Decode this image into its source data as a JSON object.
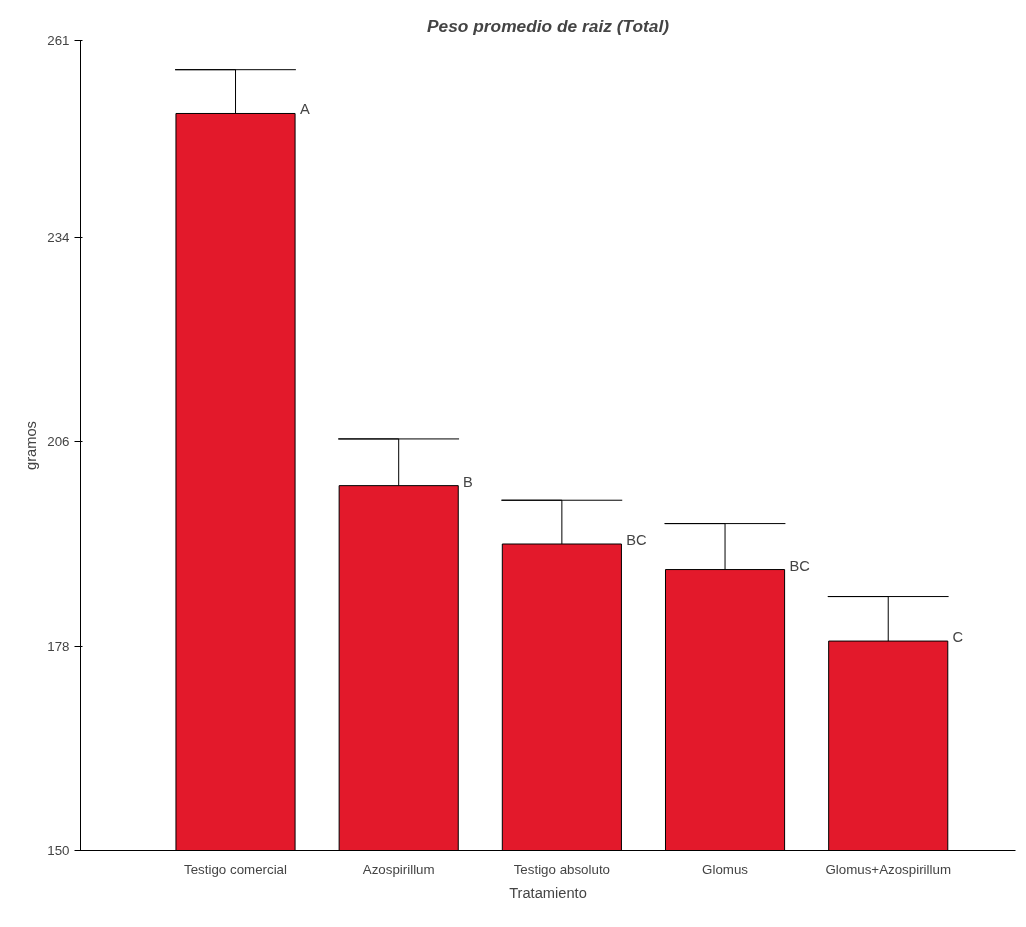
{
  "chart_data": {
    "type": "bar",
    "title": "Peso promedio de raiz (Total)",
    "xlabel": "Tratamiento",
    "ylabel": "gramos",
    "categories": [
      "Testigo comercial",
      "Azospirillum",
      "Testigo absoluto",
      "Glomus",
      "Glomus+Azospirillum"
    ],
    "values": [
      251,
      200,
      192,
      188.5,
      178.7
    ],
    "errors": [
      [
        251,
        257
      ],
      [
        200,
        206.4
      ],
      [
        192,
        198
      ],
      [
        188.5,
        194.8
      ],
      [
        178.7,
        184.8
      ]
    ],
    "color": "#e3192b",
    "ylim": [
      150,
      261
    ],
    "yticks": [
      150,
      178,
      206,
      234,
      261
    ],
    "grid": false,
    "annotations": [
      "A",
      "B",
      "BC",
      "BC",
      "C"
    ]
  }
}
